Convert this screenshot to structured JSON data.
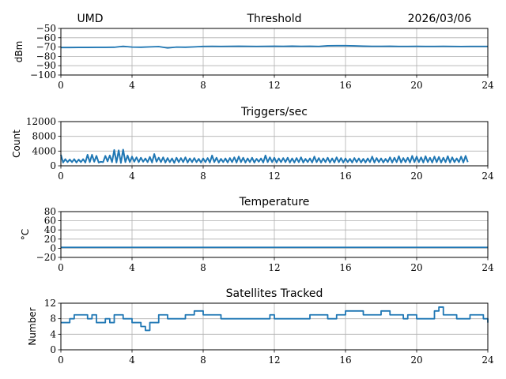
{
  "header": {
    "left": "UMD",
    "right": "2026/03/06"
  },
  "chart_data": [
    {
      "type": "line",
      "title": "Threshold",
      "xlabel": "",
      "ylabel": "dBm",
      "xlim": [
        0,
        24
      ],
      "ylim": [
        -100,
        -50
      ],
      "grid": true,
      "xticks": [
        0,
        4,
        8,
        12,
        16,
        20,
        24
      ],
      "yticks": [
        -50,
        -60,
        -70,
        -80,
        -90,
        -100
      ],
      "ytick_labels": [
        "−50",
        "−60",
        "−70",
        "−80",
        "−90",
        "−100"
      ],
      "x_step": 0.5,
      "values": [
        -70.5,
        -70.5,
        -70.4,
        -70.4,
        -70.3,
        -70.3,
        -70.2,
        -69.2,
        -70,
        -70.2,
        -69.8,
        -69.5,
        -71,
        -70,
        -70.2,
        -69.8,
        -69.3,
        -69.2,
        -69.3,
        -69.2,
        -69.1,
        -69.2,
        -69.3,
        -69.2,
        -69.1,
        -69.2,
        -69.0,
        -69.2,
        -69.1,
        -69.3,
        -68.6,
        -68.5,
        -68.5,
        -68.7,
        -69,
        -69.2,
        -69.2,
        -69.1,
        -69.3,
        -69.3,
        -69.2,
        -69.3,
        -69.3,
        -69.2,
        -69.3,
        -69.4,
        -69.3,
        -69.3,
        -69.3
      ],
      "color": "#1f77b4"
    },
    {
      "type": "line",
      "title": "Triggers/sec",
      "xlabel": "",
      "ylabel": "Count",
      "xlim": [
        0,
        24
      ],
      "ylim": [
        0,
        12000
      ],
      "grid": true,
      "xticks": [
        0,
        4,
        8,
        12,
        16,
        20,
        24
      ],
      "yticks": [
        0,
        4000,
        8000,
        12000
      ],
      "ytick_labels": [
        "0",
        "4000",
        "8000",
        "12000"
      ],
      "x_step": 0.125,
      "values": [
        3000,
        900,
        1800,
        1000,
        1700,
        1000,
        1800,
        900,
        1700,
        1000,
        1800,
        900,
        3000,
        1000,
        3000,
        1100,
        2700,
        900,
        1100,
        1000,
        2700,
        1200,
        2800,
        1000,
        4300,
        900,
        4200,
        800,
        4400,
        1000,
        2800,
        1000,
        2500,
        1100,
        2300,
        1000,
        2200,
        1100,
        2000,
        1000,
        2400,
        900,
        3200,
        1100,
        2200,
        1000,
        2300,
        900,
        2100,
        1000,
        2000,
        800,
        2200,
        1000,
        2100,
        1000,
        2300,
        900,
        2000,
        1000,
        2100,
        1000,
        1900,
        900,
        2000,
        1000,
        2100,
        900,
        2800,
        1000,
        2200,
        900,
        1900,
        1000,
        2000,
        900,
        2100,
        1000,
        2300,
        900,
        2500,
        1000,
        2200,
        900,
        2000,
        1000,
        2200,
        900,
        1900,
        1100,
        2000,
        900,
        2800,
        1000,
        2300,
        1000,
        2200,
        900,
        2000,
        1000,
        2100,
        1000,
        2200,
        900,
        2000,
        900,
        2100,
        1000,
        2300,
        900,
        1900,
        1000,
        2000,
        900,
        2500,
        1000,
        2100,
        900,
        2000,
        1000,
        2200,
        900,
        2000,
        900,
        2300,
        1000,
        2100,
        900,
        2000,
        1000,
        1900,
        900,
        2100,
        1000,
        2000,
        900,
        1900,
        900,
        2000,
        1000,
        2500,
        900,
        2100,
        1000,
        2000,
        900,
        1900,
        1000,
        2300,
        900,
        2200,
        1000,
        2600,
        900,
        2100,
        1000,
        2200,
        900,
        2700,
        1000,
        2500,
        1000,
        2300,
        900,
        2600,
        1000,
        2200,
        900,
        2500,
        1000,
        2400,
        900,
        2200,
        1000,
        2600,
        900,
        2300,
        1000,
        2000,
        1000,
        2500,
        900,
        2700,
        1000
      ]
    },
    {
      "type": "line",
      "title": "Temperature",
      "xlabel": "",
      "ylabel": "°C",
      "xlim": [
        0,
        24
      ],
      "ylim": [
        -20,
        80
      ],
      "grid": true,
      "xticks": [
        0,
        4,
        8,
        12,
        16,
        20,
        24
      ],
      "yticks": [
        -20,
        0,
        20,
        40,
        60,
        80
      ],
      "ytick_labels": [
        "−20",
        "0",
        "20",
        "40",
        "60",
        "80"
      ],
      "x_step": 1,
      "values": [
        2,
        2,
        2,
        2,
        2,
        2,
        2,
        2,
        2,
        2,
        2,
        2,
        2,
        2,
        2,
        2,
        2,
        2,
        2,
        2,
        2,
        2,
        2,
        2,
        2
      ]
    },
    {
      "type": "line",
      "title": "Satellites Tracked",
      "xlabel": "",
      "ylabel": "Number",
      "xlim": [
        0,
        24
      ],
      "ylim": [
        0,
        12
      ],
      "grid": true,
      "xticks": [
        0,
        4,
        8,
        12,
        16,
        20,
        24
      ],
      "yticks": [
        0,
        4,
        8,
        12
      ],
      "ytick_labels": [
        "0",
        "4",
        "8",
        "12"
      ],
      "x_step": 0.25,
      "values": [
        7,
        7,
        8,
        9,
        9,
        9,
        8,
        9,
        7,
        7,
        8,
        7,
        9,
        9,
        8,
        8,
        7,
        7,
        6,
        5,
        7,
        7,
        9,
        9,
        8,
        8,
        8,
        8,
        9,
        9,
        10,
        10,
        9,
        9,
        9,
        9,
        8,
        8,
        8,
        8,
        8,
        8,
        8,
        8,
        8,
        8,
        8,
        9,
        8,
        8,
        8,
        8,
        8,
        8,
        8,
        8,
        9,
        9,
        9,
        9,
        8,
        8,
        9,
        9,
        10,
        10,
        10,
        10,
        9,
        9,
        9,
        9,
        10,
        10,
        9,
        9,
        9,
        8,
        9,
        9,
        8,
        8,
        8,
        8,
        10,
        11,
        9,
        9,
        9,
        8,
        8,
        8,
        9,
        9,
        9,
        8,
        7
      ]
    }
  ]
}
